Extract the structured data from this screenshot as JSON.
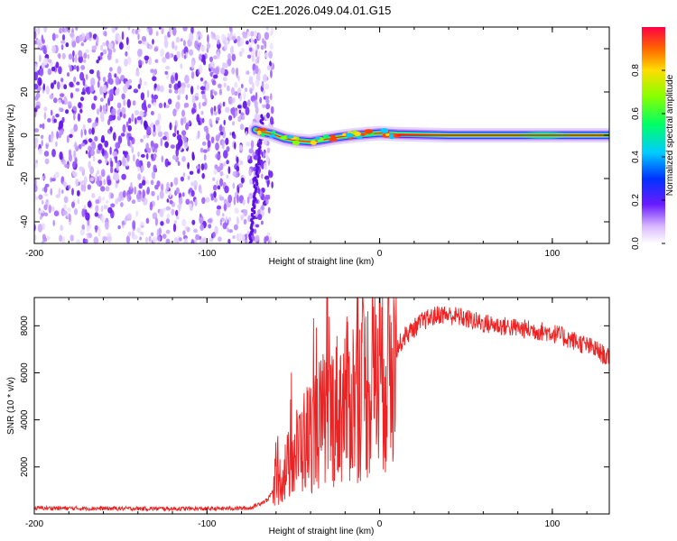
{
  "title": "C2E1.2026.049.04.01.G15",
  "chart_data": [
    {
      "id": "spectrogram",
      "type": "heatmap",
      "xlabel": "Height of straight line (km)",
      "ylabel": "Frequency (Hz)",
      "xlim": [
        -200,
        133
      ],
      "ylim": [
        -50,
        50
      ],
      "xticks": [
        -200,
        -100,
        0,
        100
      ],
      "yticks": [
        -40,
        -20,
        0,
        20,
        40
      ],
      "xtick_labels": [
        "-200",
        "-100",
        "0",
        "100"
      ],
      "ytick_labels": [
        "-40",
        "-20",
        "0",
        "20",
        "40"
      ],
      "noise_region_x": [
        -200,
        -62
      ],
      "signal_track": [
        {
          "x": -72,
          "f": 2.5
        },
        {
          "x": -68,
          "f": 1.5
        },
        {
          "x": -62,
          "f": 0.5
        },
        {
          "x": -55,
          "f": -1.5
        },
        {
          "x": -48,
          "f": -2.5
        },
        {
          "x": -40,
          "f": -3.0
        },
        {
          "x": -32,
          "f": -2.0
        },
        {
          "x": -25,
          "f": -1.0
        },
        {
          "x": -15,
          "f": 0.0
        },
        {
          "x": 0,
          "f": 1.0
        },
        {
          "x": 10,
          "f": 0.5
        },
        {
          "x": 40,
          "f": 0.0
        },
        {
          "x": 133,
          "f": 0.0
        }
      ],
      "colorbar": {
        "label": "Normalized spectral amplitude",
        "range": [
          0,
          1
        ],
        "ticks": [
          0.0,
          0.2,
          0.4,
          0.6,
          0.8
        ],
        "tick_labels": [
          "0.0",
          "0.2",
          "0.4",
          "0.6",
          "0.8"
        ]
      }
    },
    {
      "id": "snr",
      "type": "line",
      "xlabel": "Height of straight line (km)",
      "ylabel": "SNR (10 * v/v)",
      "xlim": [
        -200,
        133
      ],
      "ylim": [
        0,
        9200
      ],
      "xticks": [
        -200,
        -100,
        0,
        100
      ],
      "yticks": [
        2000,
        4000,
        6000,
        8000
      ],
      "xtick_labels": [
        "-200",
        "-100",
        "0",
        "100"
      ],
      "ytick_labels": [
        "2000",
        "4000",
        "6000",
        "8000"
      ],
      "color": "#ee2222",
      "series": [
        {
          "name": "SNR",
          "x": [
            -200,
            -150,
            -100,
            -75,
            -65,
            -55,
            -45,
            -35,
            -25,
            -15,
            -5,
            5,
            15,
            25,
            35,
            45,
            60,
            80,
            100,
            115,
            125,
            133
          ],
          "y": [
            250,
            230,
            220,
            250,
            600,
            1800,
            3000,
            3800,
            4500,
            5000,
            5600,
            6500,
            7600,
            8200,
            8500,
            8400,
            8100,
            7900,
            7700,
            7300,
            7000,
            6600
          ]
        }
      ]
    }
  ]
}
